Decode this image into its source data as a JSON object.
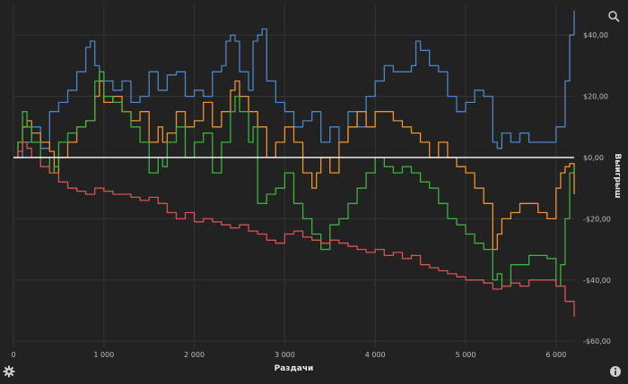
{
  "chart_data": {
    "type": "line",
    "xlabel": "Раздачи",
    "ylabel": "Выигрыш",
    "xlim": [
      0,
      6200
    ],
    "ylim": [
      -62,
      50
    ],
    "x_ticks": [
      0,
      1000,
      2000,
      3000,
      4000,
      5000,
      6000
    ],
    "x_tick_labels": [
      "0",
      "1 000",
      "2 000",
      "3 000",
      "4 000",
      "5 000",
      "6 000"
    ],
    "y_ticks": [
      40,
      20,
      0,
      -20,
      -40,
      -60
    ],
    "y_tick_labels": [
      "$40,00",
      "$20,00",
      "$0,00",
      "-$20,00",
      "-$40,00",
      "-$60,00"
    ],
    "grid": true,
    "legend": "none",
    "zero_line_color": "#ffffff",
    "series": [
      {
        "color": "#4a86c8",
        "x": [
          0,
          100,
          200,
          300,
          400,
          500,
          600,
          700,
          800,
          850,
          900,
          950,
          1000,
          1100,
          1200,
          1300,
          1400,
          1500,
          1600,
          1700,
          1800,
          1900,
          2000,
          2100,
          2200,
          2300,
          2350,
          2400,
          2450,
          2500,
          2600,
          2650,
          2700,
          2750,
          2800,
          2900,
          3000,
          3100,
          3200,
          3300,
          3400,
          3500,
          3600,
          3700,
          3800,
          3900,
          4000,
          4100,
          4200,
          4300,
          4400,
          4450,
          4500,
          4600,
          4700,
          4800,
          4900,
          5000,
          5100,
          5200,
          5300,
          5350,
          5400,
          5500,
          5600,
          5700,
          5800,
          5900,
          6000,
          6100,
          6150,
          6200
        ],
        "y": [
          0,
          5,
          10,
          3,
          15,
          18,
          22,
          28,
          36,
          38,
          30,
          25,
          25,
          22,
          25,
          18,
          20,
          28,
          22,
          27,
          28,
          20,
          22,
          20,
          28,
          30,
          38,
          40,
          38,
          28,
          22,
          38,
          40,
          42,
          25,
          18,
          15,
          10,
          12,
          15,
          5,
          10,
          5,
          15,
          10,
          20,
          25,
          30,
          28,
          28,
          30,
          38,
          35,
          30,
          28,
          20,
          15,
          18,
          22,
          20,
          5,
          3,
          8,
          5,
          8,
          5,
          5,
          5,
          10,
          25,
          40,
          48
        ]
      },
      {
        "color": "#f0922e",
        "x": [
          0,
          50,
          100,
          150,
          200,
          300,
          400,
          450,
          500,
          600,
          700,
          800,
          900,
          950,
          1000,
          1100,
          1200,
          1300,
          1400,
          1500,
          1600,
          1650,
          1700,
          1800,
          1900,
          2000,
          2100,
          2200,
          2300,
          2400,
          2450,
          2500,
          2600,
          2700,
          2800,
          2900,
          3000,
          3100,
          3200,
          3300,
          3350,
          3400,
          3500,
          3600,
          3700,
          3800,
          3900,
          4000,
          4100,
          4200,
          4300,
          4400,
          4500,
          4600,
          4700,
          4800,
          4900,
          5000,
          5100,
          5200,
          5300,
          5350,
          5400,
          5500,
          5600,
          5700,
          5800,
          5900,
          6000,
          6050,
          6100,
          6150,
          6200
        ],
        "y": [
          0,
          5,
          10,
          12,
          8,
          5,
          2,
          -5,
          0,
          5,
          10,
          12,
          20,
          25,
          18,
          20,
          15,
          12,
          15,
          5,
          10,
          5,
          8,
          15,
          10,
          12,
          18,
          10,
          15,
          22,
          25,
          20,
          15,
          10,
          0,
          5,
          10,
          5,
          -5,
          -10,
          -5,
          0,
          -5,
          5,
          10,
          15,
          10,
          15,
          15,
          12,
          10,
          8,
          5,
          0,
          5,
          0,
          -3,
          -5,
          -10,
          -15,
          -30,
          -25,
          -20,
          -18,
          -15,
          -15,
          -18,
          -20,
          -10,
          -5,
          -3,
          -2,
          -12
        ]
      },
      {
        "color": "#3db23d",
        "x": [
          0,
          50,
          100,
          150,
          200,
          300,
          400,
          450,
          500,
          600,
          700,
          800,
          900,
          950,
          1000,
          1100,
          1200,
          1300,
          1400,
          1500,
          1600,
          1650,
          1700,
          1800,
          1900,
          2000,
          2100,
          2200,
          2300,
          2400,
          2450,
          2500,
          2600,
          2650,
          2700,
          2800,
          2900,
          3000,
          3100,
          3200,
          3300,
          3400,
          3500,
          3600,
          3700,
          3800,
          3900,
          4000,
          4100,
          4200,
          4300,
          4400,
          4500,
          4600,
          4700,
          4800,
          4900,
          5000,
          5100,
          5200,
          5300,
          5350,
          5400,
          5500,
          5600,
          5700,
          5800,
          5900,
          6000,
          6050,
          6100,
          6150,
          6200
        ],
        "y": [
          0,
          5,
          15,
          10,
          5,
          0,
          -5,
          -3,
          5,
          8,
          10,
          12,
          25,
          28,
          20,
          18,
          15,
          10,
          5,
          -5,
          0,
          -3,
          5,
          10,
          0,
          5,
          8,
          -5,
          5,
          15,
          20,
          15,
          5,
          10,
          -15,
          -12,
          -10,
          -5,
          -15,
          -20,
          -25,
          -30,
          -22,
          -20,
          -15,
          -10,
          -5,
          0,
          -3,
          -5,
          -3,
          -5,
          -8,
          -10,
          -15,
          -20,
          -22,
          -25,
          -28,
          -30,
          -40,
          -38,
          -42,
          -35,
          -35,
          -32,
          -32,
          -33,
          -42,
          -35,
          -20,
          -5,
          -3
        ]
      },
      {
        "color": "#d9534f",
        "x": [
          0,
          50,
          100,
          150,
          200,
          300,
          400,
          500,
          600,
          700,
          800,
          900,
          1000,
          1100,
          1200,
          1300,
          1400,
          1500,
          1600,
          1700,
          1800,
          1900,
          2000,
          2100,
          2200,
          2300,
          2400,
          2500,
          2600,
          2700,
          2800,
          2900,
          3000,
          3100,
          3200,
          3300,
          3400,
          3500,
          3600,
          3700,
          3800,
          3900,
          4000,
          4100,
          4200,
          4300,
          4400,
          4500,
          4600,
          4700,
          4800,
          4900,
          5000,
          5100,
          5200,
          5300,
          5400,
          5500,
          5600,
          5700,
          5800,
          5900,
          6000,
          6100,
          6200
        ],
        "y": [
          0,
          2,
          5,
          3,
          0,
          -3,
          -5,
          -8,
          -10,
          -11,
          -12,
          -10,
          -11,
          -12,
          -12,
          -13,
          -14,
          -13,
          -15,
          -18,
          -20,
          -18,
          -21,
          -20,
          -21,
          -22,
          -23,
          -22,
          -24,
          -25,
          -27,
          -28,
          -25,
          -24,
          -26,
          -27,
          -28,
          -27,
          -28,
          -29,
          -30,
          -31,
          -30,
          -32,
          -31,
          -33,
          -32,
          -35,
          -36,
          -37,
          -38,
          -39,
          -40,
          -40,
          -41,
          -43,
          -42,
          -41,
          -42,
          -40,
          -40,
          -40,
          -42,
          -47,
          -52
        ]
      }
    ]
  }
}
